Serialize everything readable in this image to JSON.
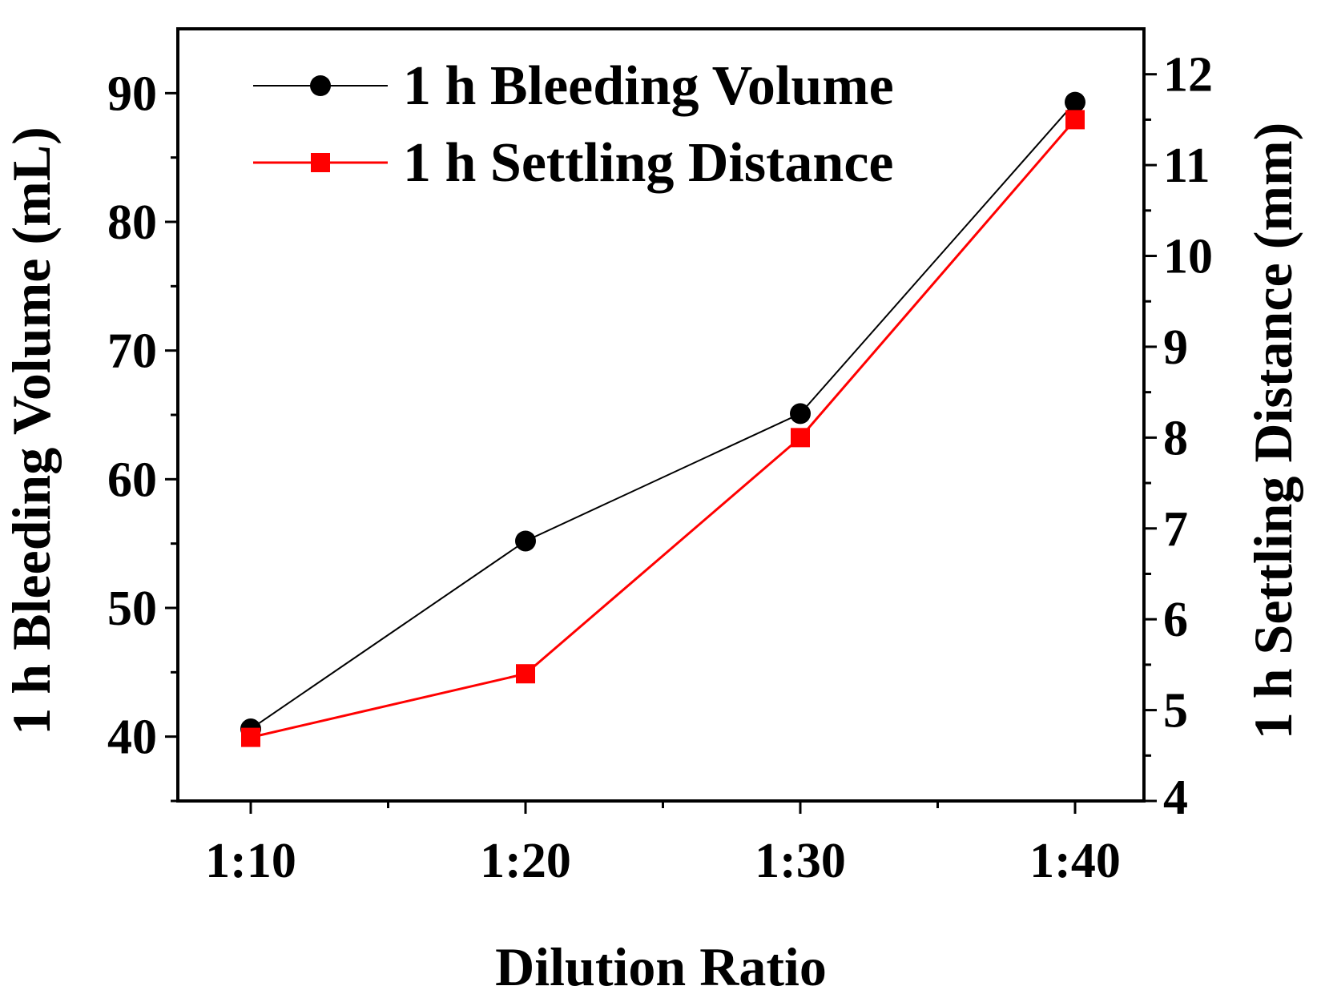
{
  "chart_data": {
    "type": "line",
    "title": "",
    "xlabel": "Dilution Ratio",
    "ylabel": "1 h Bleeding Volume (mL)",
    "y2label": "1 h Settling Distance (mm)",
    "categories": [
      "1:10",
      "1:20",
      "1:30",
      "1:40"
    ],
    "ylim": [
      35,
      95
    ],
    "y2lim": [
      4,
      12.5
    ],
    "yticks": [
      40,
      50,
      60,
      70,
      80,
      90
    ],
    "y2ticks": [
      4,
      5,
      6,
      7,
      8,
      9,
      10,
      11,
      12
    ],
    "legend_position": "top-left",
    "grid": false,
    "series": [
      {
        "name": "1 h Bleeding Volume",
        "axis": "left",
        "marker": "circle",
        "color": "#000000",
        "values": [
          40.6,
          55.2,
          65.1,
          89.3
        ]
      },
      {
        "name": "1 h Settling Distance",
        "axis": "right",
        "marker": "square",
        "color": "#ff0000",
        "values": [
          4.7,
          5.4,
          8.0,
          11.5
        ]
      }
    ]
  }
}
